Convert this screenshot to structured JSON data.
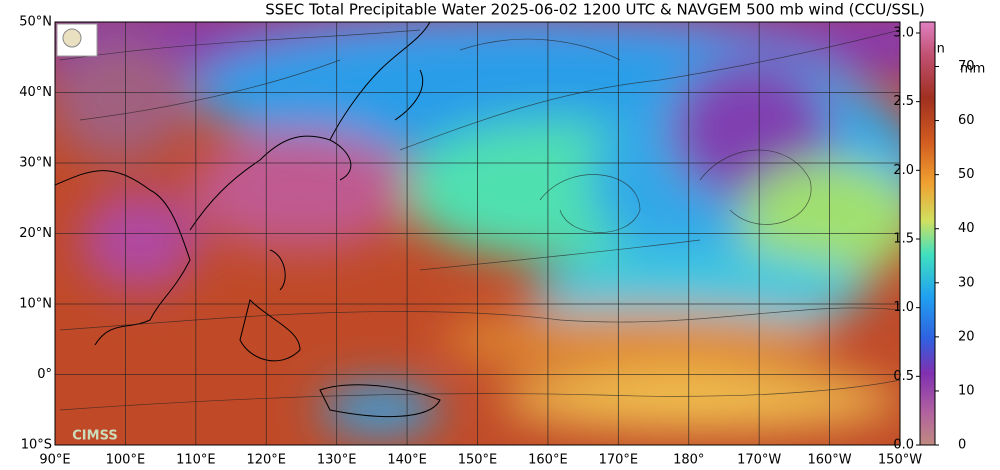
{
  "title": "SSEC Total Precipitable Water  2025-06-02 1200 UTC & NAVGEM 500 mb wind (CCU/SSL)",
  "map": {
    "lat_labels": [
      "50°N",
      "40°N",
      "30°N",
      "20°N",
      "10°N",
      "0°",
      "10°S"
    ],
    "lon_labels": [
      "90°E",
      "100°E",
      "110°E",
      "120°E",
      "130°E",
      "140°E",
      "150°E",
      "160°E",
      "170°E",
      "180°",
      "170°W",
      "160°W",
      "150°W"
    ],
    "logo": "CIMSS"
  },
  "colorbar": {
    "inch_unit": "in",
    "mm_unit": "mm",
    "inch_ticks": [
      {
        "value": 0,
        "label": "0.0"
      },
      {
        "value": 0.5,
        "label": "0.5"
      },
      {
        "value": 1,
        "label": "1.0"
      },
      {
        "value": 1.5,
        "label": "1.5"
      },
      {
        "value": 2,
        "label": "2.0"
      },
      {
        "value": 2.5,
        "label": "2.5"
      },
      {
        "value": 3,
        "label": "3.0"
      }
    ],
    "mm_ticks": [
      0,
      10,
      20,
      30,
      40,
      50,
      60,
      70
    ]
  }
}
